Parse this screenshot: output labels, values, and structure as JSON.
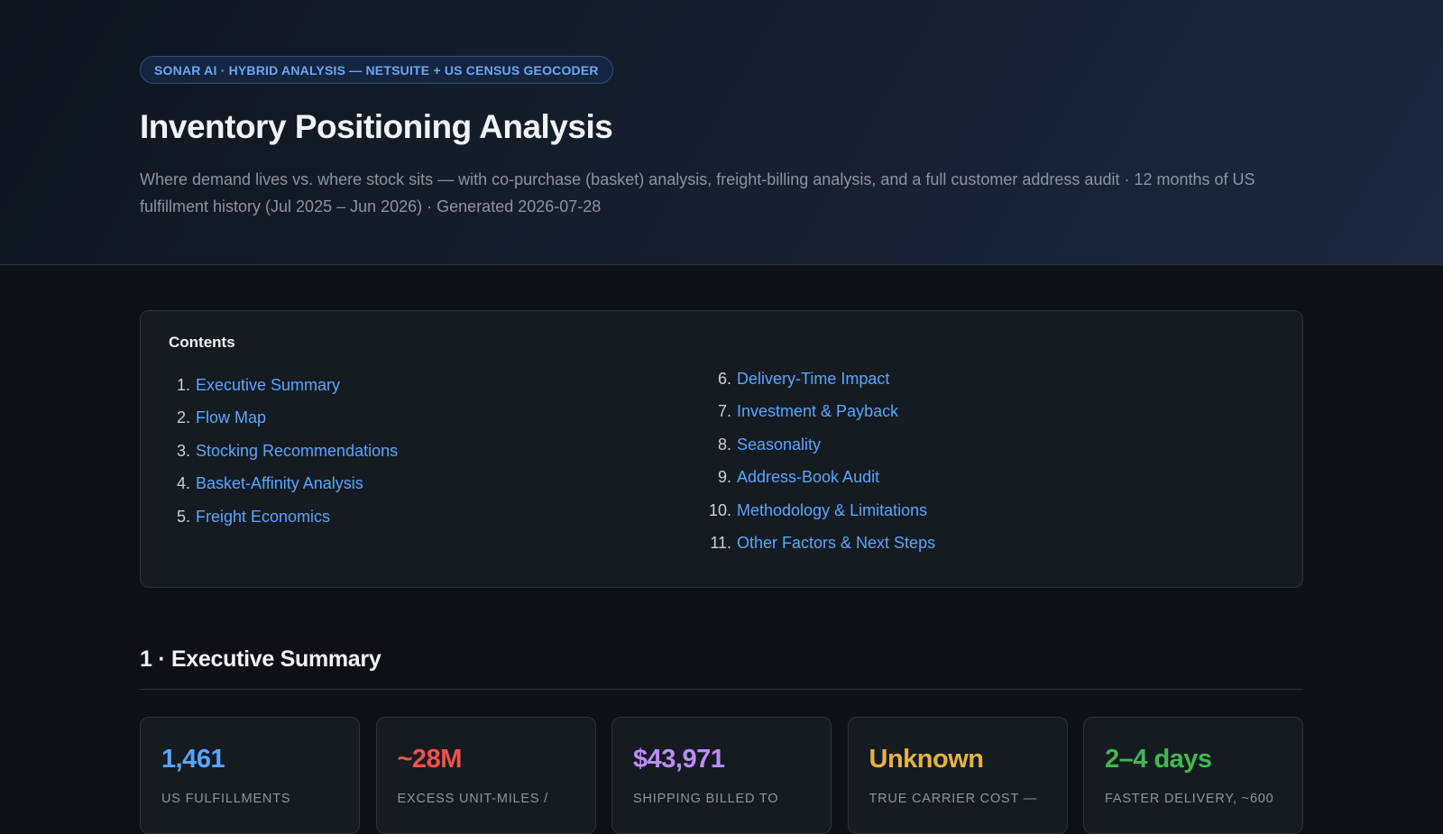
{
  "header": {
    "badge": "SONAR AI · HYBRID ANALYSIS — NETSUITE + US CENSUS GEOCODER",
    "title": "Inventory Positioning Analysis",
    "subtitle": "Where demand lives vs. where stock sits — with co-purchase (basket) analysis, freight-billing analysis, and a full customer address audit · 12 months of US fulfillment history (Jul 2025 – Jun 2026) · Generated 2026-07-28"
  },
  "contents": {
    "title": "Contents",
    "left_items": [
      {
        "num": "1.",
        "label": "Executive Summary"
      },
      {
        "num": "2.",
        "label": "Flow Map"
      },
      {
        "num": "3.",
        "label": "Stocking Recommendations"
      },
      {
        "num": "4.",
        "label": "Basket-Affinity Analysis"
      },
      {
        "num": "5.",
        "label": "Freight Economics"
      }
    ],
    "right_items": [
      {
        "num": "6.",
        "label": "Delivery-Time Impact"
      },
      {
        "num": "7.",
        "label": "Investment & Payback"
      },
      {
        "num": "8.",
        "label": "Seasonality"
      },
      {
        "num": "9.",
        "label": "Address-Book Audit"
      },
      {
        "num": "10.",
        "label": "Methodology & Limitations"
      },
      {
        "num": "11.",
        "label": "Other Factors & Next Steps"
      }
    ]
  },
  "executive_summary": {
    "title": "1 · Executive Summary",
    "kpis": [
      {
        "value": "1,461",
        "label": "US FULFILLMENTS",
        "color": "#58a6ff"
      },
      {
        "value": "~28M",
        "label": "EXCESS UNIT-MILES /",
        "color": "#f85149"
      },
      {
        "value": "$43,971",
        "label": "SHIPPING BILLED TO",
        "color": "#bc8cff"
      },
      {
        "value": "Unknown",
        "label": "TRUE CARRIER COST —",
        "color": "#e3b341"
      },
      {
        "value": "2–4 days",
        "label": "FASTER DELIVERY, ~600",
        "color": "#3fb950"
      }
    ]
  }
}
